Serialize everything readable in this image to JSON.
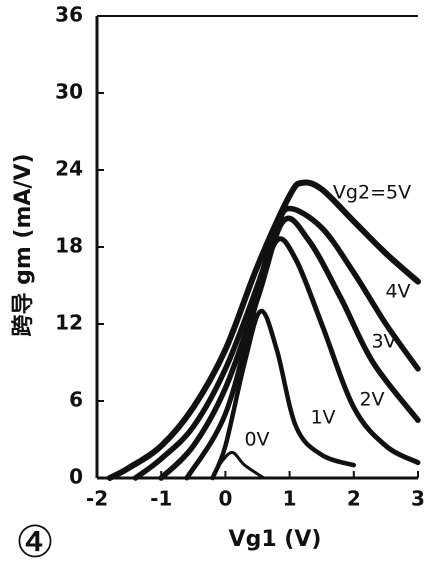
{
  "chart_data": {
    "type": "line",
    "panel_label": "④",
    "xlabel": "Vg1 (V)",
    "ylabel": "跨导 gm (mA/V)",
    "xlim": [
      -2,
      3
    ],
    "xticks": [
      -2,
      -1,
      0,
      1,
      2,
      3
    ],
    "ylim": [
      0,
      36
    ],
    "yticks": [
      0,
      6,
      12,
      18,
      24,
      30,
      36
    ],
    "grid": false,
    "color": "#111111",
    "series": [
      {
        "name": "Vg2=5V",
        "x": [
          -1.8,
          -1.5,
          -1,
          -0.5,
          0,
          0.5,
          1,
          1.2,
          1.5,
          2,
          2.5,
          3
        ],
        "values": [
          0,
          0.8,
          2.5,
          5.5,
          10,
          16.5,
          22,
          23,
          22.5,
          20,
          17.5,
          15.3
        ]
      },
      {
        "name": "4V",
        "x": [
          -1.4,
          -1,
          -0.5,
          0,
          0.5,
          0.8,
          1,
          1.5,
          2,
          2.5,
          3
        ],
        "values": [
          0,
          1.5,
          4,
          8.5,
          15,
          19.5,
          21,
          19.5,
          16,
          12,
          8.5
        ]
      },
      {
        "name": "3V",
        "x": [
          -1,
          -0.5,
          0,
          0.5,
          0.9,
          1.3,
          1.8,
          2.3,
          3
        ],
        "values": [
          0,
          2.5,
          7,
          14,
          20,
          18.5,
          14,
          9,
          4.5
        ]
      },
      {
        "name": "2V",
        "x": [
          -0.6,
          0,
          0.5,
          0.8,
          1.1,
          1.5,
          2,
          2.5,
          3
        ],
        "values": [
          0,
          5,
          14,
          18.5,
          17,
          12,
          5.5,
          2.5,
          1.2
        ]
      },
      {
        "name": "1V",
        "x": [
          -0.2,
          0,
          0.3,
          0.55,
          0.8,
          1.1,
          1.5,
          2
        ],
        "values": [
          0,
          2.5,
          9,
          13,
          10,
          4,
          1.8,
          1
        ]
      },
      {
        "name": "0V",
        "x": [
          -0.1,
          0.1,
          0.3,
          0.6
        ],
        "values": [
          1,
          2,
          1,
          0
        ]
      }
    ]
  }
}
